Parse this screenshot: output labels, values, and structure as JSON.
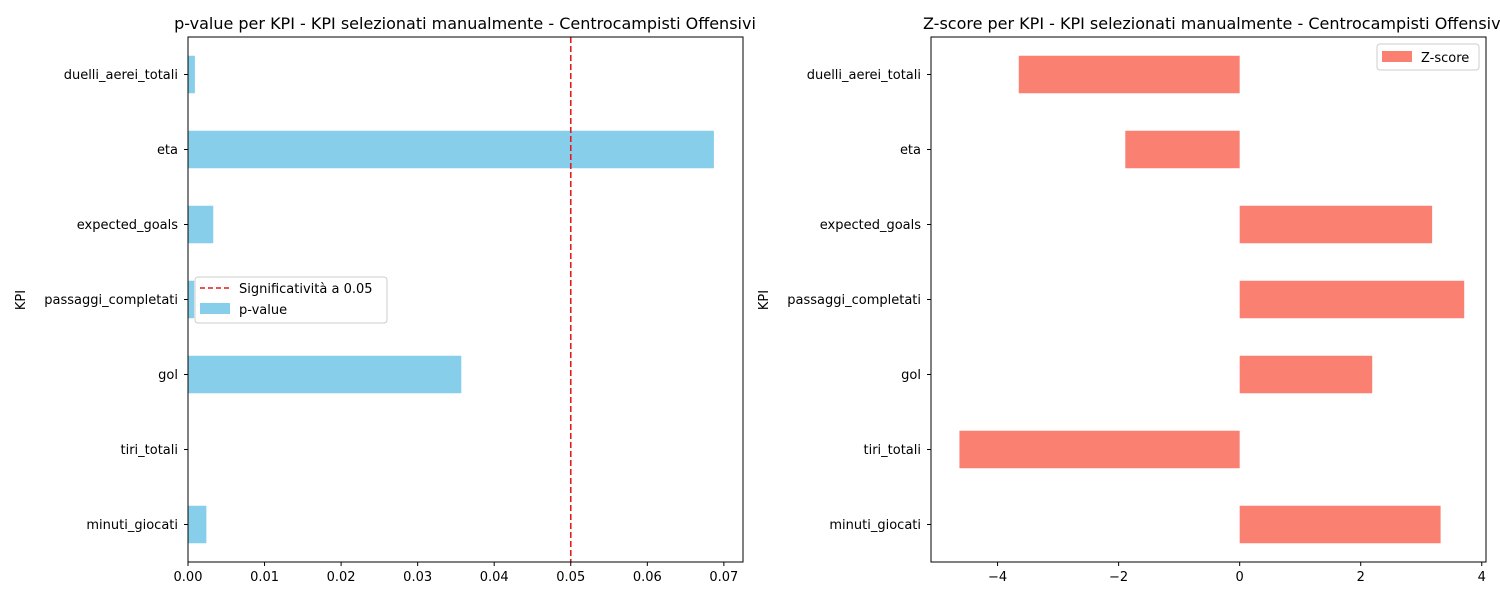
{
  "colors": {
    "pvalue_bar": "#87ceeb",
    "zscore_bar": "#fa8072",
    "threshold_line": "#e41a1c",
    "axes": "#000000"
  },
  "chart_data": [
    {
      "type": "bar",
      "orientation": "horizontal",
      "title": "p-value per KPI - KPI selezionati manualmente - Centrocampisti Offensivi",
      "ylabel": "KPI",
      "xlabel": "",
      "categories": [
        "minuti_giocati",
        "tiri_totali",
        "gol",
        "passaggi_completati",
        "expected_goals",
        "eta",
        "duelli_aerei_totali"
      ],
      "series": [
        {
          "name": "p-value",
          "values": [
            0.0024,
            1e-05,
            0.0357,
            0.0008,
            0.0033,
            0.0687,
            0.0009
          ]
        }
      ],
      "reference_line": {
        "label": "Significatività a 0.05",
        "x": 0.05,
        "style": "dashed"
      },
      "xlim": [
        0,
        0.0725
      ],
      "xticks": [
        0,
        0.01,
        0.02,
        0.03,
        0.04,
        0.05,
        0.06,
        0.07
      ],
      "xtick_labels": [
        "0.00",
        "0.01",
        "0.02",
        "0.03",
        "0.04",
        "0.05",
        "0.06",
        "0.07"
      ],
      "legend": {
        "position": "center-left",
        "entries": [
          "Significatività a 0.05",
          "p-value"
        ]
      },
      "grid": false
    },
    {
      "type": "bar",
      "orientation": "horizontal",
      "title": "Z-score per KPI - KPI selezionati manualmente - Centrocampisti Offensivi",
      "ylabel": "KPI",
      "xlabel": "",
      "categories": [
        "minuti_giocati",
        "tiri_totali",
        "gol",
        "passaggi_completati",
        "expected_goals",
        "eta",
        "duelli_aerei_totali"
      ],
      "series": [
        {
          "name": "Z-score",
          "values": [
            3.32,
            -4.63,
            2.19,
            3.71,
            3.18,
            -1.89,
            -3.65
          ]
        }
      ],
      "xlim": [
        -5.1,
        4.07
      ],
      "xticks": [
        -4,
        -2,
        0,
        2,
        4
      ],
      "xtick_labels": [
        "−4",
        "−2",
        "0",
        "2",
        "4"
      ],
      "legend": {
        "position": "top-right",
        "entries": [
          "Z-score"
        ]
      },
      "grid": false
    }
  ]
}
